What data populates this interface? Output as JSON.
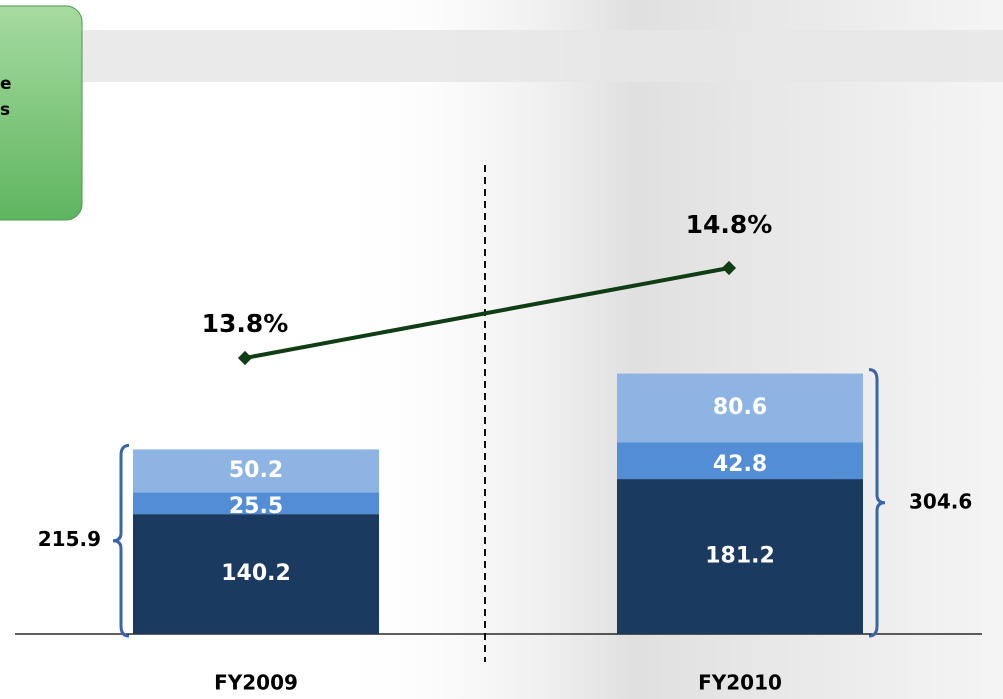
{
  "chart_data": {
    "type": "stacked-bar-line",
    "box_text": [
      "e",
      "s"
    ],
    "categories": [
      "FY2009",
      "FY2010"
    ],
    "series": [
      {
        "color": "#1b3a60",
        "values": [
          140.2,
          181.2
        ]
      },
      {
        "color": "#538dd5",
        "values": [
          25.5,
          42.8
        ]
      },
      {
        "color": "#8db4e2",
        "values": [
          50.2,
          80.6
        ]
      }
    ],
    "totals": [
      215.9,
      304.6
    ],
    "line": {
      "color": "#0f3d14",
      "values": [
        13.8,
        14.8
      ],
      "value_labels": [
        "13.8%",
        "14.8%"
      ]
    }
  }
}
